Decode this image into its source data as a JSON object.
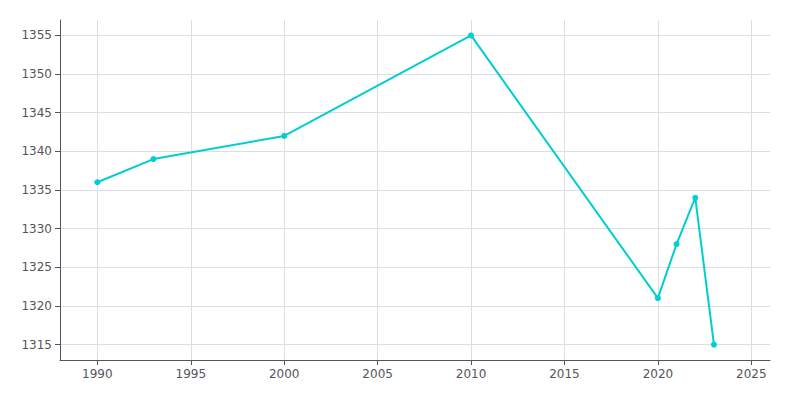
{
  "chart_data": {
    "type": "line",
    "x": [
      1990,
      1993,
      2000,
      2010,
      2020,
      2021,
      2022,
      2023
    ],
    "values": [
      1336,
      1339,
      1342,
      1355,
      1321,
      1328,
      1334,
      1315
    ],
    "color": "#00CED1",
    "marker": "circle",
    "xlim": [
      1988,
      2026
    ],
    "ylim": [
      1313,
      1357
    ],
    "xticks": [
      1990,
      1995,
      2000,
      2005,
      2010,
      2015,
      2020,
      2025
    ],
    "yticks": [
      1315,
      1320,
      1325,
      1330,
      1335,
      1340,
      1345,
      1350,
      1355
    ],
    "grid": true
  }
}
